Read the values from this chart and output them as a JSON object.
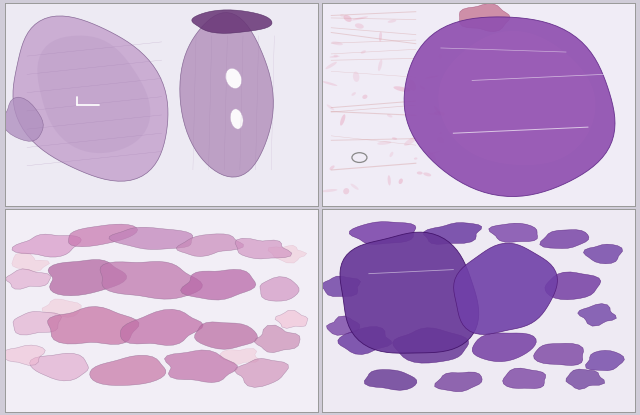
{
  "figure_width": 6.4,
  "figure_height": 4.15,
  "dpi": 100,
  "background_color": "#d0ccd8",
  "panel_bgs": [
    "#edeaf3",
    "#f0ecf6",
    "#f2eef6",
    "#eeeaf3"
  ]
}
